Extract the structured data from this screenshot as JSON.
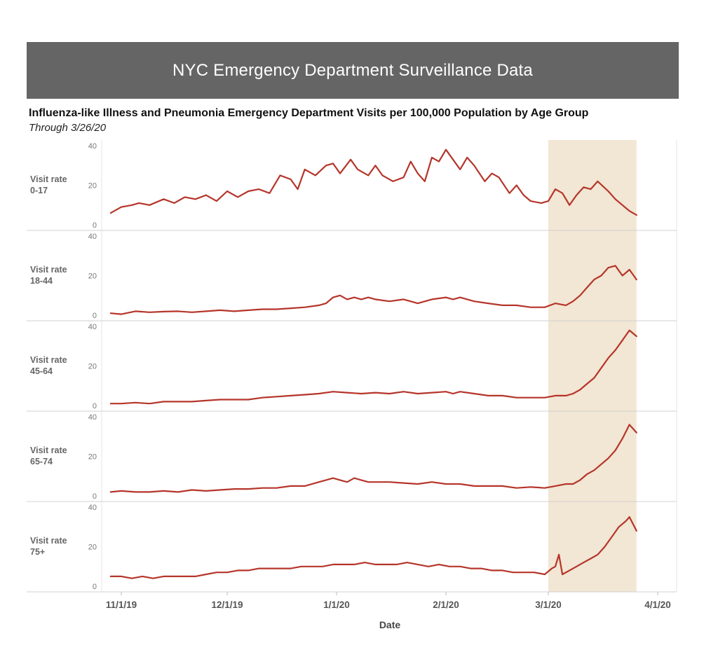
{
  "header": {
    "banner_title": "NYC Emergency Department Surveillance Data",
    "subtitle": "Influenza-like Illness and Pneumonia Emergency Department Visits per 100,000 Population by Age Group",
    "through": "Through 3/26/20"
  },
  "colors": {
    "banner": "#656565",
    "line": "#b5352a",
    "highlight": "#f2e6d4",
    "grid": "#d0d0d0"
  },
  "chart_data": {
    "type": "line",
    "xlabel": "Date",
    "ylabel": "Visit rate",
    "ylim": [
      0,
      40
    ],
    "yticks": [
      0,
      20,
      40
    ],
    "x_range_days": [
      0,
      156
    ],
    "xticks": [
      {
        "label": "11/1/19",
        "day": 0
      },
      {
        "label": "12/1/19",
        "day": 30
      },
      {
        "label": "1/1/20",
        "day": 61
      },
      {
        "label": "2/1/20",
        "day": 92
      },
      {
        "label": "3/1/20",
        "day": 121
      },
      {
        "label": "4/1/20",
        "day": 152
      }
    ],
    "highlight_range_days": [
      121,
      146
    ],
    "series": [
      {
        "name": "0-17",
        "label_line1": "Visit rate",
        "label_line2": "0-17",
        "points": [
          [
            -3,
            6
          ],
          [
            0,
            9
          ],
          [
            3,
            10
          ],
          [
            5,
            11
          ],
          [
            8,
            10
          ],
          [
            12,
            13
          ],
          [
            15,
            11
          ],
          [
            18,
            14
          ],
          [
            21,
            13
          ],
          [
            24,
            15
          ],
          [
            27,
            12
          ],
          [
            30,
            17
          ],
          [
            33,
            14
          ],
          [
            36,
            17
          ],
          [
            39,
            18
          ],
          [
            42,
            16
          ],
          [
            45,
            25
          ],
          [
            48,
            23
          ],
          [
            50,
            18
          ],
          [
            52,
            28
          ],
          [
            55,
            25
          ],
          [
            58,
            30
          ],
          [
            60,
            31
          ],
          [
            62,
            26
          ],
          [
            65,
            33
          ],
          [
            67,
            28
          ],
          [
            70,
            25
          ],
          [
            72,
            30
          ],
          [
            74,
            25
          ],
          [
            77,
            22
          ],
          [
            80,
            24
          ],
          [
            82,
            32
          ],
          [
            84,
            26
          ],
          [
            86,
            22
          ],
          [
            88,
            34
          ],
          [
            90,
            32
          ],
          [
            92,
            38
          ],
          [
            94,
            33
          ],
          [
            96,
            28
          ],
          [
            98,
            34
          ],
          [
            100,
            30
          ],
          [
            103,
            22
          ],
          [
            105,
            26
          ],
          [
            107,
            24
          ],
          [
            110,
            16
          ],
          [
            112,
            20
          ],
          [
            114,
            15
          ],
          [
            116,
            12
          ],
          [
            119,
            11
          ],
          [
            121,
            12
          ],
          [
            123,
            18
          ],
          [
            125,
            16
          ],
          [
            127,
            10
          ],
          [
            129,
            15
          ],
          [
            131,
            19
          ],
          [
            133,
            18
          ],
          [
            135,
            22
          ],
          [
            138,
            17
          ],
          [
            140,
            13
          ],
          [
            142,
            10
          ],
          [
            144,
            7
          ],
          [
            146,
            5
          ]
        ]
      },
      {
        "name": "18-44",
        "label_line1": "Visit rate",
        "label_line2": "18-44",
        "points": [
          [
            -3,
            1
          ],
          [
            0,
            0.5
          ],
          [
            4,
            2
          ],
          [
            8,
            1.5
          ],
          [
            12,
            1.8
          ],
          [
            16,
            2
          ],
          [
            20,
            1.5
          ],
          [
            24,
            2
          ],
          [
            28,
            2.5
          ],
          [
            32,
            2
          ],
          [
            36,
            2.5
          ],
          [
            40,
            3
          ],
          [
            44,
            3
          ],
          [
            48,
            3.5
          ],
          [
            52,
            4
          ],
          [
            56,
            5
          ],
          [
            58,
            6
          ],
          [
            60,
            9
          ],
          [
            62,
            10
          ],
          [
            64,
            8
          ],
          [
            66,
            9
          ],
          [
            68,
            8
          ],
          [
            70,
            9
          ],
          [
            72,
            8
          ],
          [
            76,
            7
          ],
          [
            80,
            8
          ],
          [
            84,
            6
          ],
          [
            88,
            8
          ],
          [
            92,
            9
          ],
          [
            94,
            8
          ],
          [
            96,
            9
          ],
          [
            100,
            7
          ],
          [
            104,
            6
          ],
          [
            108,
            5
          ],
          [
            112,
            5
          ],
          [
            116,
            4
          ],
          [
            120,
            4
          ],
          [
            123,
            6
          ],
          [
            126,
            5
          ],
          [
            128,
            7
          ],
          [
            130,
            10
          ],
          [
            132,
            14
          ],
          [
            134,
            18
          ],
          [
            136,
            20
          ],
          [
            138,
            24
          ],
          [
            140,
            25
          ],
          [
            142,
            20
          ],
          [
            144,
            23
          ],
          [
            146,
            18
          ]
        ]
      },
      {
        "name": "45-64",
        "label_line1": "Visit rate",
        "label_line2": "45-64",
        "points": [
          [
            -3,
            1
          ],
          [
            0,
            1
          ],
          [
            4,
            1.5
          ],
          [
            8,
            1
          ],
          [
            12,
            2
          ],
          [
            16,
            2
          ],
          [
            20,
            2
          ],
          [
            24,
            2.5
          ],
          [
            28,
            3
          ],
          [
            32,
            3
          ],
          [
            36,
            3
          ],
          [
            40,
            4
          ],
          [
            44,
            4.5
          ],
          [
            48,
            5
          ],
          [
            52,
            5.5
          ],
          [
            56,
            6
          ],
          [
            60,
            7
          ],
          [
            64,
            6.5
          ],
          [
            68,
            6
          ],
          [
            72,
            6.5
          ],
          [
            76,
            6
          ],
          [
            80,
            7
          ],
          [
            84,
            6
          ],
          [
            88,
            6.5
          ],
          [
            92,
            7
          ],
          [
            94,
            6
          ],
          [
            96,
            7
          ],
          [
            100,
            6
          ],
          [
            104,
            5
          ],
          [
            108,
            5
          ],
          [
            112,
            4
          ],
          [
            116,
            4
          ],
          [
            120,
            4
          ],
          [
            123,
            5
          ],
          [
            126,
            5
          ],
          [
            128,
            6
          ],
          [
            130,
            8
          ],
          [
            132,
            11
          ],
          [
            134,
            14
          ],
          [
            136,
            19
          ],
          [
            138,
            24
          ],
          [
            140,
            28
          ],
          [
            142,
            33
          ],
          [
            144,
            38
          ],
          [
            146,
            35
          ]
        ]
      },
      {
        "name": "65-74",
        "label_line1": "Visit rate",
        "label_line2": "65-74",
        "points": [
          [
            -3,
            2
          ],
          [
            0,
            2.5
          ],
          [
            4,
            2
          ],
          [
            8,
            2
          ],
          [
            12,
            2.5
          ],
          [
            16,
            2
          ],
          [
            20,
            3
          ],
          [
            24,
            2.5
          ],
          [
            28,
            3
          ],
          [
            32,
            3.5
          ],
          [
            36,
            3.5
          ],
          [
            40,
            4
          ],
          [
            44,
            4
          ],
          [
            48,
            5
          ],
          [
            52,
            5
          ],
          [
            56,
            7
          ],
          [
            58,
            8
          ],
          [
            60,
            9
          ],
          [
            62,
            8
          ],
          [
            64,
            7
          ],
          [
            66,
            9
          ],
          [
            68,
            8
          ],
          [
            70,
            7
          ],
          [
            72,
            7
          ],
          [
            76,
            7
          ],
          [
            80,
            6.5
          ],
          [
            84,
            6
          ],
          [
            88,
            7
          ],
          [
            92,
            6
          ],
          [
            96,
            6
          ],
          [
            100,
            5
          ],
          [
            104,
            5
          ],
          [
            108,
            5
          ],
          [
            112,
            4
          ],
          [
            116,
            4.5
          ],
          [
            120,
            4
          ],
          [
            123,
            5
          ],
          [
            126,
            6
          ],
          [
            128,
            6
          ],
          [
            130,
            8
          ],
          [
            132,
            11
          ],
          [
            134,
            13
          ],
          [
            136,
            16
          ],
          [
            138,
            19
          ],
          [
            140,
            23
          ],
          [
            142,
            29
          ],
          [
            144,
            36
          ],
          [
            146,
            32
          ]
        ]
      },
      {
        "name": "75+",
        "label_line1": "Visit rate",
        "label_line2": "75+",
        "points": [
          [
            -3,
            5
          ],
          [
            0,
            5
          ],
          [
            3,
            4
          ],
          [
            6,
            5
          ],
          [
            9,
            4
          ],
          [
            12,
            5
          ],
          [
            15,
            5
          ],
          [
            18,
            5
          ],
          [
            21,
            5
          ],
          [
            24,
            6
          ],
          [
            27,
            7
          ],
          [
            30,
            7
          ],
          [
            33,
            8
          ],
          [
            36,
            8
          ],
          [
            39,
            9
          ],
          [
            42,
            9
          ],
          [
            45,
            9
          ],
          [
            48,
            9
          ],
          [
            51,
            10
          ],
          [
            54,
            10
          ],
          [
            57,
            10
          ],
          [
            60,
            11
          ],
          [
            63,
            11
          ],
          [
            66,
            11
          ],
          [
            69,
            12
          ],
          [
            72,
            11
          ],
          [
            75,
            11
          ],
          [
            78,
            11
          ],
          [
            81,
            12
          ],
          [
            84,
            11
          ],
          [
            87,
            10
          ],
          [
            90,
            11
          ],
          [
            93,
            10
          ],
          [
            96,
            10
          ],
          [
            99,
            9
          ],
          [
            102,
            9
          ],
          [
            105,
            8
          ],
          [
            108,
            8
          ],
          [
            111,
            7
          ],
          [
            114,
            7
          ],
          [
            117,
            7
          ],
          [
            120,
            6
          ],
          [
            122,
            9
          ],
          [
            123,
            10
          ],
          [
            124,
            16
          ],
          [
            125,
            6
          ],
          [
            127,
            8
          ],
          [
            129,
            10
          ],
          [
            131,
            12
          ],
          [
            133,
            14
          ],
          [
            135,
            16
          ],
          [
            137,
            20
          ],
          [
            139,
            25
          ],
          [
            141,
            30
          ],
          [
            143,
            33
          ],
          [
            144,
            35
          ],
          [
            146,
            28
          ]
        ]
      }
    ]
  }
}
